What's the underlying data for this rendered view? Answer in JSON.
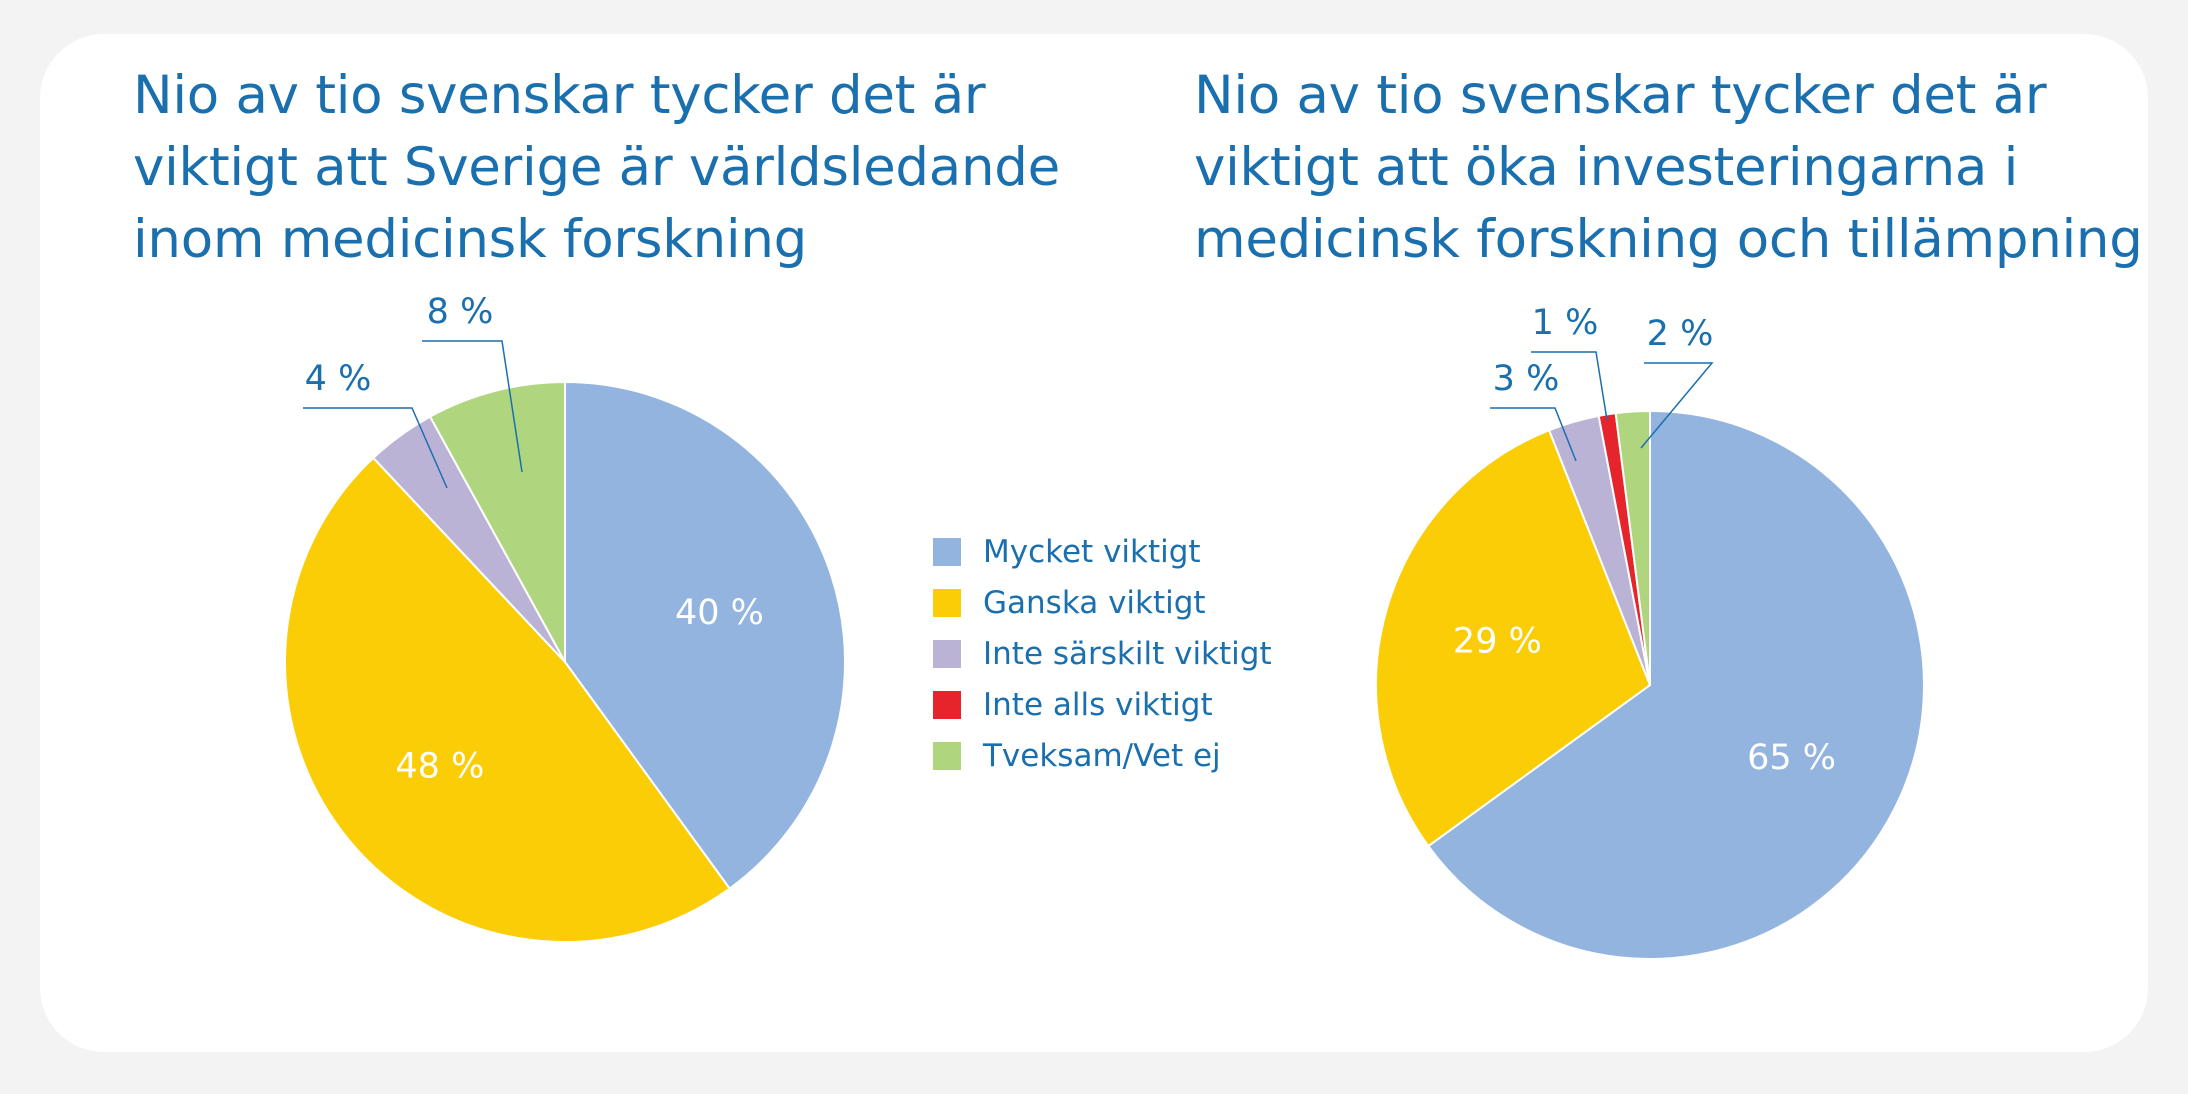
{
  "colors": {
    "mycket": "#92b4df",
    "ganska": "#fbcd07",
    "inte_sarskilt": "#bbb3d6",
    "inte_alls": "#e5242b",
    "tveksam": "#b0d57f",
    "text_blue": "#1a6fae"
  },
  "charts": [
    {
      "title_lines": [
        "Nio av tio svenskar tycker det är",
        "viktigt att Sverige är världsledande",
        "inom medicinsk forskning"
      ]
    },
    {
      "title_lines": [
        "Nio av tio svenskar tycker det är",
        "viktigt att öka investeringarna i",
        "medicinsk forskning och tillämpning"
      ]
    }
  ],
  "legend": [
    {
      "label": "Mycket viktigt",
      "color": "#92b4df"
    },
    {
      "label": "Ganska viktigt",
      "color": "#fbcd07"
    },
    {
      "label": "Inte särskilt viktigt",
      "color": "#bbb3d6"
    },
    {
      "label": "Inte alls viktigt",
      "color": "#e5242b"
    },
    {
      "label": "Tveksam/Vet ej",
      "color": "#b0d57f"
    }
  ],
  "chart_data": [
    {
      "type": "pie",
      "title": "Nio av tio svenskar tycker det är viktigt att Sverige är världsledande inom medicinsk forskning",
      "categories": [
        "Mycket viktigt",
        "Ganska viktigt",
        "Inte särskilt viktigt",
        "Tveksam/Vet ej"
      ],
      "values": [
        40,
        48,
        4,
        8
      ],
      "labels": [
        "40 %",
        "48 %",
        "4 %",
        "8 %"
      ],
      "colors": [
        "#92b4df",
        "#fbcd07",
        "#bbb3d6",
        "#b0d57f"
      ],
      "label_style": [
        "inside",
        "inside",
        "leader",
        "leader"
      ],
      "legend_placement": "right"
    },
    {
      "type": "pie",
      "title": "Nio av tio svenskar tycker det är viktigt att öka investeringarna i medicinsk forskning och tillämpning",
      "categories": [
        "Mycket viktigt",
        "Ganska viktigt",
        "Inte särskilt viktigt",
        "Inte alls viktigt",
        "Tveksam/Vet ej"
      ],
      "values": [
        65,
        29,
        3,
        1,
        2
      ],
      "labels": [
        "65 %",
        "29 %",
        "3 %",
        "1 %",
        "2 %"
      ],
      "colors": [
        "#92b4df",
        "#fbcd07",
        "#bbb3d6",
        "#e5242b",
        "#b0d57f"
      ],
      "label_style": [
        "inside",
        "inside",
        "leader",
        "leader",
        "leader"
      ],
      "legend_placement": "left"
    }
  ]
}
